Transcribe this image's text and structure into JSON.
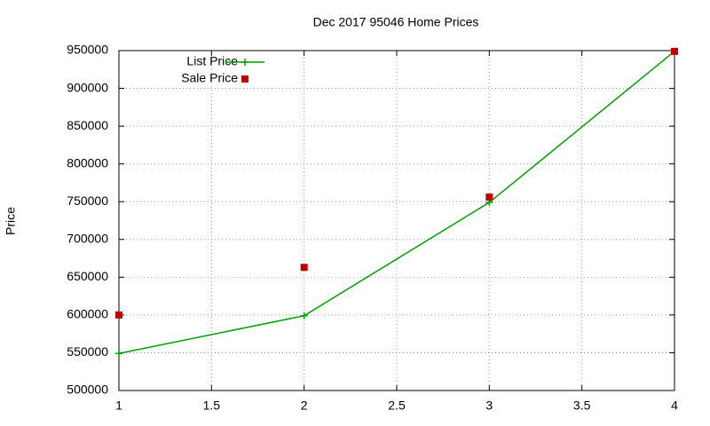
{
  "chart_data": {
    "type": "line",
    "title": "Dec 2017 95046 Home Prices",
    "ylabel": "Price",
    "x": [
      1,
      2,
      3,
      4
    ],
    "series": [
      {
        "name": "List Price",
        "color": "#00a000",
        "style": "linespoints",
        "values": [
          549000,
          599000,
          749000,
          949000
        ]
      },
      {
        "name": "Sale Price",
        "color": "#c00000",
        "style": "points",
        "values": [
          600000,
          663000,
          756000,
          949000
        ]
      }
    ],
    "xlim": [
      1,
      4
    ],
    "xticks": [
      1,
      1.5,
      2,
      2.5,
      3,
      3.5,
      4
    ],
    "ylim": [
      500000,
      950000
    ],
    "yticks": [
      500000,
      550000,
      600000,
      650000,
      700000,
      750000,
      800000,
      850000,
      900000,
      950000
    ],
    "grid": true,
    "legend": "top-left"
  }
}
